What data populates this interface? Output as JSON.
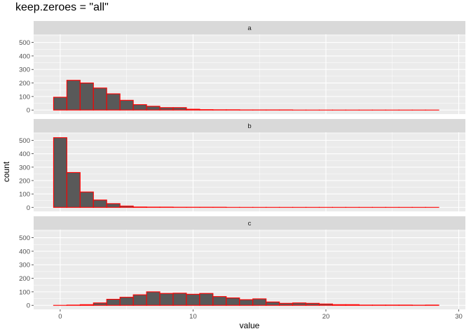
{
  "chart_data": {
    "type": "bar",
    "title": "keep.zeroes = \"all\"",
    "xlabel": "value",
    "ylabel": "count",
    "xlim": [
      -2,
      30.5
    ],
    "ylim": [
      -30,
      560
    ],
    "x_ticks": [
      0,
      10,
      20,
      30
    ],
    "y_ticks": [
      0,
      100,
      200,
      300,
      400,
      500
    ],
    "bin_width": 1,
    "grid": true,
    "colors": {
      "fill": "#595959",
      "outline": "#ff0000",
      "panel": "#ebebeb",
      "strip": "#d9d9d9",
      "grid": "#ffffff"
    },
    "facets": [
      {
        "name": "a",
        "x": [
          0,
          1,
          2,
          3,
          4,
          5,
          6,
          7,
          8,
          9,
          10,
          11,
          12,
          13,
          14,
          15,
          16,
          17,
          18,
          19,
          20,
          21,
          22,
          23,
          24,
          25,
          26,
          27,
          28
        ],
        "values": [
          95,
          220,
          200,
          163,
          120,
          72,
          40,
          28,
          18,
          18,
          6,
          3,
          2,
          2,
          1,
          1,
          1,
          1,
          0,
          0,
          0,
          0,
          0,
          0,
          0,
          0,
          0,
          0,
          0
        ]
      },
      {
        "name": "b",
        "x": [
          0,
          1,
          2,
          3,
          4,
          5,
          6,
          7,
          8,
          9,
          10,
          11,
          12,
          13,
          14,
          15,
          16,
          17,
          18,
          19,
          20,
          21,
          22,
          23,
          24,
          25,
          26,
          27,
          28
        ],
        "values": [
          520,
          260,
          115,
          55,
          28,
          10,
          3,
          2,
          2,
          1,
          1,
          1,
          1,
          0,
          0,
          0,
          0,
          0,
          0,
          0,
          0,
          0,
          0,
          0,
          0,
          0,
          0,
          0,
          0
        ]
      },
      {
        "name": "c",
        "x": [
          0,
          1,
          2,
          3,
          4,
          5,
          6,
          7,
          8,
          9,
          10,
          11,
          12,
          13,
          14,
          15,
          16,
          17,
          18,
          19,
          20,
          21,
          22,
          23,
          24,
          25,
          26,
          27,
          28
        ],
        "values": [
          0,
          2,
          5,
          18,
          45,
          60,
          78,
          100,
          88,
          90,
          82,
          88,
          65,
          55,
          42,
          48,
          25,
          15,
          18,
          15,
          10,
          5,
          5,
          2,
          2,
          2,
          2,
          1,
          2
        ]
      }
    ]
  }
}
